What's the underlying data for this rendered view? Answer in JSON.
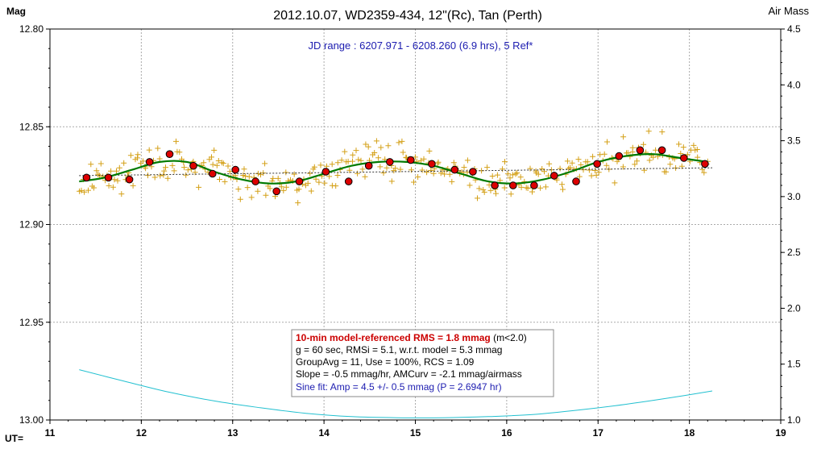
{
  "chart_data": {
    "type": "scatter",
    "title": "2012.10.07, WD2359-434, 12\"(Rc), Tan (Perth)",
    "subtitle": "JD range : 6207.971 - 6208.260 (6.9 hrs), 5 Ref*",
    "ylabel_left": "Mag",
    "ylabel_right": "Air Mass",
    "xlabel": "UT=",
    "xlim": [
      11,
      19
    ],
    "ylim_left": [
      12.8,
      13.0
    ],
    "ylim_left_inverted": true,
    "ylim_right": [
      1.0,
      4.5
    ],
    "x_ticks": [
      "11",
      "12",
      "13",
      "14",
      "15",
      "16",
      "17",
      "18",
      "19"
    ],
    "y_left_ticks": [
      "12.80",
      "12.85",
      "12.90",
      "12.95",
      "13.00"
    ],
    "y_right_ticks": [
      "4.5",
      "4.0",
      "3.5",
      "3.0",
      "2.5",
      "2.0",
      "1.5",
      "1.0"
    ],
    "grid": true,
    "colors": {
      "raw": "#d4a017",
      "binned_fill": "#dd0000",
      "model": "#007a00",
      "trend": "#333333",
      "airmass": "#22c0d0",
      "subtitle": "#1c1cb0",
      "stats_rms": "#cc0000",
      "stats_sine": "#1c1cb0"
    },
    "series": [
      {
        "kind": "binned",
        "x": [
          11.4,
          11.64,
          11.87,
          12.09,
          12.31,
          12.57,
          12.78,
          13.03,
          13.25,
          13.48,
          13.73,
          14.02,
          14.27,
          14.49,
          14.72,
          14.95,
          15.18,
          15.43,
          15.63,
          15.87,
          16.07,
          16.3,
          16.52,
          16.76,
          16.99,
          17.23,
          17.46,
          17.7,
          17.94,
          18.17
        ],
        "values": [
          12.876,
          12.876,
          12.877,
          12.868,
          12.864,
          12.87,
          12.874,
          12.872,
          12.878,
          12.883,
          12.878,
          12.873,
          12.878,
          12.87,
          12.868,
          12.867,
          12.869,
          12.872,
          12.873,
          12.88,
          12.88,
          12.88,
          12.875,
          12.878,
          12.869,
          12.865,
          12.862,
          12.862,
          12.866,
          12.869
        ]
      },
      {
        "kind": "model",
        "x": [
          11.32,
          11.6,
          11.9,
          12.2,
          12.5,
          12.8,
          13.1,
          13.4,
          13.7,
          14.0,
          14.3,
          14.6,
          14.9,
          15.2,
          15.5,
          15.8,
          16.1,
          16.4,
          16.7,
          17.0,
          17.3,
          17.6,
          17.9,
          18.2
        ],
        "values": [
          12.878,
          12.876,
          12.872,
          12.868,
          12.868,
          12.873,
          12.877,
          12.879,
          12.878,
          12.874,
          12.87,
          12.868,
          12.868,
          12.87,
          12.874,
          12.878,
          12.879,
          12.877,
          12.873,
          12.868,
          12.865,
          12.864,
          12.866,
          12.868
        ]
      },
      {
        "kind": "trend",
        "x": [
          11.32,
          18.25
        ],
        "values": [
          12.875,
          12.871
        ]
      },
      {
        "kind": "airmass",
        "x": [
          11.32,
          11.8,
          12.3,
          12.8,
          13.3,
          13.8,
          14.3,
          14.8,
          15.3,
          15.8,
          16.3,
          16.8,
          17.3,
          17.8,
          18.25
        ],
        "values": [
          1.45,
          1.35,
          1.25,
          1.17,
          1.11,
          1.06,
          1.03,
          1.02,
          1.02,
          1.03,
          1.05,
          1.09,
          1.14,
          1.2,
          1.26
        ]
      }
    ],
    "annotation_lines": [
      "10-min model-referenced RMS = 1.8 mmag",
      " (m<2.0)",
      "g = 60 sec, RMSi = 5.1, w.r.t. model = 5.3 mmag",
      "GroupAvg  = 11, Use = 100%, RCS = 1.09",
      "Slope = -0.5 mmag/hr,  AMCurv  = -2.1 mmag/airmass",
      "Sine fit: Amp = 4.5 +/- 0.5 mmag  (P = 2.6947  hr)"
    ]
  }
}
